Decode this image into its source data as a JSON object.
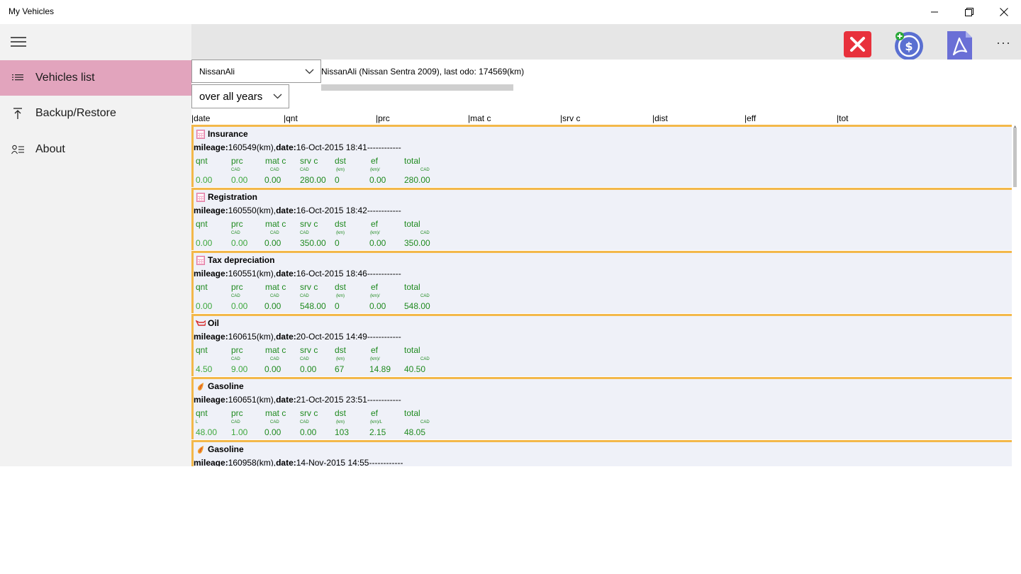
{
  "window": {
    "title": "My Vehicles",
    "controls": [
      "minimize",
      "restore",
      "close"
    ]
  },
  "nav": {
    "items": [
      {
        "label": "Vehicles list",
        "icon": "list-icon",
        "selected": true
      },
      {
        "label": "Backup/Restore",
        "icon": "upload-icon",
        "selected": false
      },
      {
        "label": "About",
        "icon": "contact-icon",
        "selected": false
      }
    ]
  },
  "toolbar": {
    "buttons": [
      {
        "icon": "delete-x-icon",
        "color": "#e8313c"
      },
      {
        "icon": "add-expense-dollar-icon",
        "color": "#5a6fd1"
      },
      {
        "icon": "pdf-export-icon",
        "color": "#6a6fd6"
      }
    ],
    "more": "···"
  },
  "vehicle_select": {
    "value": "NissanAli"
  },
  "vehicle_summary": "NissanAli (Nissan Sentra 2009), last odo: 174569(km)",
  "period_select": {
    "value": "over all years"
  },
  "columns": [
    "|date",
    "|qnt",
    "|prc",
    "|mat c",
    "|srv c",
    "|dist",
    "|eff",
    "|tot"
  ],
  "field_labels": {
    "qnt": "qnt",
    "prc": "prc",
    "mat": "mat c",
    "srv": "srv c",
    "dst": "dst",
    "ef": "ef",
    "total": "total"
  },
  "meta_labels": {
    "mileage": "mileage:",
    "date": "date:"
  },
  "entries": [
    {
      "type": "Insurance",
      "icon": "calculator-icon",
      "mileage": "160549(km),",
      "date": "16-Oct-2015 18:41",
      "dashes": "------------",
      "units": {
        "qnt": "",
        "prc": "CAD",
        "mat": "CAD",
        "srv": "CAD",
        "dst": "(km)",
        "ef": "(km)/",
        "total": "CAD"
      },
      "values": {
        "qnt": "0.00",
        "prc": "0.00",
        "mat": "0.00",
        "srv": "280.00",
        "dst": "0",
        "ef": "0.00",
        "total": "280.00"
      }
    },
    {
      "type": "Registration",
      "icon": "calculator-icon",
      "mileage": "160550(km),",
      "date": "16-Oct-2015 18:42",
      "dashes": "------------",
      "units": {
        "qnt": "",
        "prc": "CAD",
        "mat": "CAD",
        "srv": "CAD",
        "dst": "(km)",
        "ef": "(km)/",
        "total": "CAD"
      },
      "values": {
        "qnt": "0.00",
        "prc": "0.00",
        "mat": "0.00",
        "srv": "350.00",
        "dst": "0",
        "ef": "0.00",
        "total": "350.00"
      }
    },
    {
      "type": "Tax depreciation",
      "icon": "calculator-icon",
      "mileage": "160551(km),",
      "date": "16-Oct-2015 18:46",
      "dashes": "------------",
      "units": {
        "qnt": "",
        "prc": "CAD",
        "mat": "CAD",
        "srv": "CAD",
        "dst": "(km)",
        "ef": "(km)/",
        "total": "CAD"
      },
      "values": {
        "qnt": "0.00",
        "prc": "0.00",
        "mat": "0.00",
        "srv": "548.00",
        "dst": "0",
        "ef": "0.00",
        "total": "548.00"
      }
    },
    {
      "type": "Oil",
      "icon": "oil-can-icon",
      "mileage": "160615(km),",
      "date": "20-Oct-2015 14:49",
      "dashes": "------------",
      "units": {
        "qnt": "",
        "prc": "CAD",
        "mat": "CAD",
        "srv": "CAD",
        "dst": "(km)",
        "ef": "(km)/",
        "total": "CAD"
      },
      "values": {
        "qnt": "4.50",
        "prc": "9.00",
        "mat": "0.00",
        "srv": "0.00",
        "dst": "67",
        "ef": "14.89",
        "total": "40.50"
      }
    },
    {
      "type": "Gasoline",
      "icon": "fuel-drop-icon",
      "mileage": "160651(km),",
      "date": "21-Oct-2015 23:51",
      "dashes": "------------",
      "units": {
        "qnt": "L",
        "prc": "CAD",
        "mat": "CAD",
        "srv": "CAD",
        "dst": "(km)",
        "ef": "(km)/L",
        "total": "CAD"
      },
      "values": {
        "qnt": "48.00",
        "prc": "1.00",
        "mat": "0.00",
        "srv": "0.00",
        "dst": "103",
        "ef": "2.15",
        "total": "48.05"
      }
    },
    {
      "type": "Gasoline",
      "icon": "fuel-drop-icon",
      "mileage": "160958(km),",
      "date": "14-Nov-2015 14:55",
      "dashes": "------------",
      "units": {
        "qnt": "",
        "prc": "",
        "mat": "",
        "srv": "",
        "dst": "",
        "ef": "",
        "total": ""
      },
      "values": {
        "qnt": "",
        "prc": "",
        "mat": "",
        "srv": "",
        "dst": "",
        "ef": "",
        "total": ""
      }
    }
  ]
}
